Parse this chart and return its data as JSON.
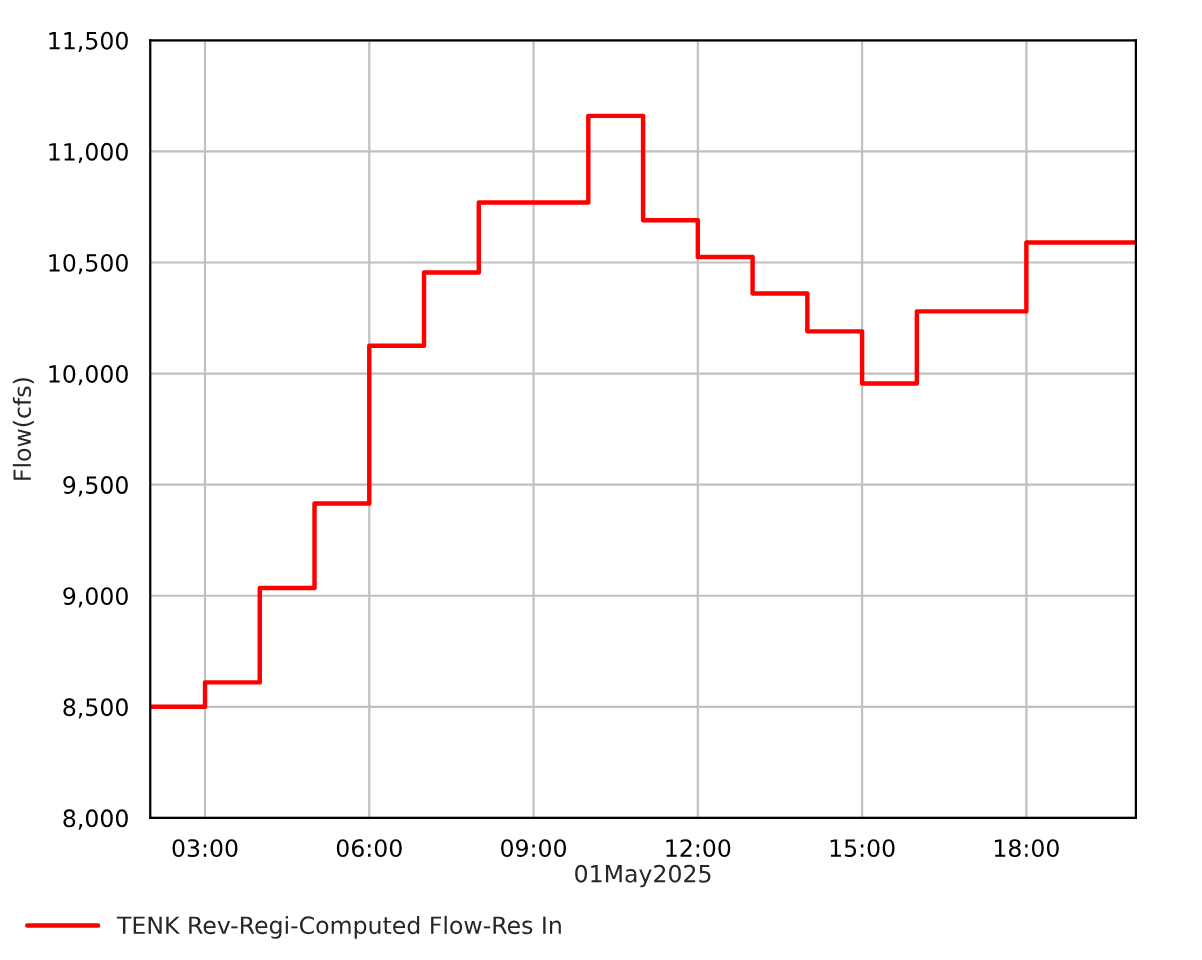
{
  "chart_data": {
    "type": "step",
    "xlabel": "01May2025",
    "ylabel": "Flow(cfs)",
    "x": [
      2,
      3,
      4,
      5,
      6,
      7,
      8,
      9,
      10,
      11,
      12,
      13,
      14,
      15,
      16,
      17,
      18,
      19,
      20
    ],
    "series": [
      {
        "name": "TENK Rev-Regi-Computed Flow-Res In",
        "color": "#ff0000",
        "values": [
          8500,
          8610,
          9035,
          9415,
          10125,
          10455,
          10770,
          10770,
          11160,
          10690,
          10525,
          10360,
          10190,
          9955,
          10280,
          10280,
          10590,
          10590,
          10590
        ]
      }
    ],
    "xlim": [
      2,
      20
    ],
    "xticks": [
      {
        "value": 3,
        "label": "03:00"
      },
      {
        "value": 6,
        "label": "06:00"
      },
      {
        "value": 9,
        "label": "09:00"
      },
      {
        "value": 12,
        "label": "12:00"
      },
      {
        "value": 15,
        "label": "15:00"
      },
      {
        "value": 18,
        "label": "18:00"
      }
    ],
    "ylim": [
      8000,
      11500
    ],
    "yticks": [
      {
        "value": 8000,
        "label": "8,000"
      },
      {
        "value": 8500,
        "label": "8,500"
      },
      {
        "value": 9000,
        "label": "9,000"
      },
      {
        "value": 9500,
        "label": "9,500"
      },
      {
        "value": 10000,
        "label": "10,000"
      },
      {
        "value": 10500,
        "label": "10,500"
      },
      {
        "value": 11000,
        "label": "11,000"
      },
      {
        "value": 11500,
        "label": "11,500"
      }
    ],
    "grid": true,
    "legend": "bottom left",
    "line_style": "solid",
    "marker": "none"
  }
}
